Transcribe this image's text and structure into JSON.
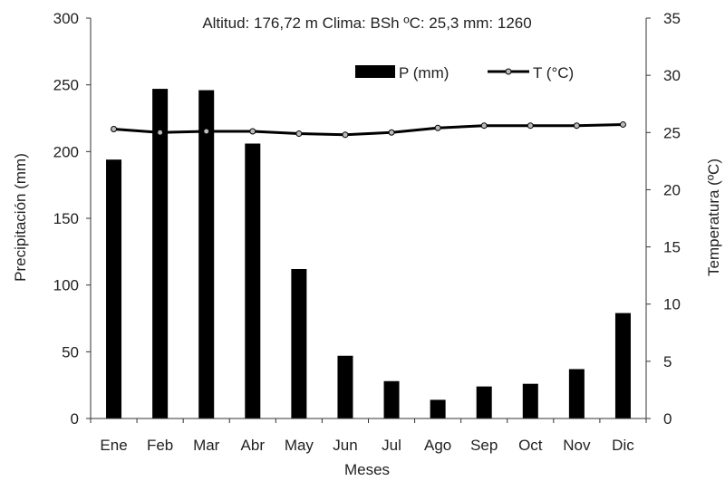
{
  "header": {
    "text": "Altitud: 176,72 m   Clima: BSh   ºC: 25,3   mm: 1260"
  },
  "chart_data": {
    "type": "bar+line",
    "categories": [
      "Ene",
      "Feb",
      "Mar",
      "Abr",
      "May",
      "Jun",
      "Jul",
      "Ago",
      "Sep",
      "Oct",
      "Nov",
      "Dic"
    ],
    "series": [
      {
        "name": "P (mm)",
        "type": "bar",
        "axis": "left",
        "values": [
          194,
          247,
          246,
          206,
          112,
          47,
          28,
          14,
          24,
          26,
          37,
          79
        ]
      },
      {
        "name": "T (°C)",
        "type": "line",
        "axis": "right",
        "values": [
          25.3,
          25.0,
          25.1,
          25.1,
          24.9,
          24.8,
          25.0,
          25.4,
          25.6,
          25.6,
          25.6,
          25.7
        ]
      }
    ],
    "xlabel": "Meses",
    "ylabel": "Precipitación (mm)",
    "y2label": "Temperatura (ºC)",
    "ylim": [
      0,
      300
    ],
    "y2lim": [
      0,
      35
    ],
    "yticks": [
      0,
      50,
      100,
      150,
      200,
      250,
      300
    ],
    "y2ticks": [
      0,
      5,
      10,
      15,
      20,
      25,
      30,
      35
    ],
    "grid": false,
    "legend_position": "top-right",
    "colors": {
      "bars": "#000000",
      "line": "#000000",
      "marker": "#bbbbbb"
    }
  }
}
